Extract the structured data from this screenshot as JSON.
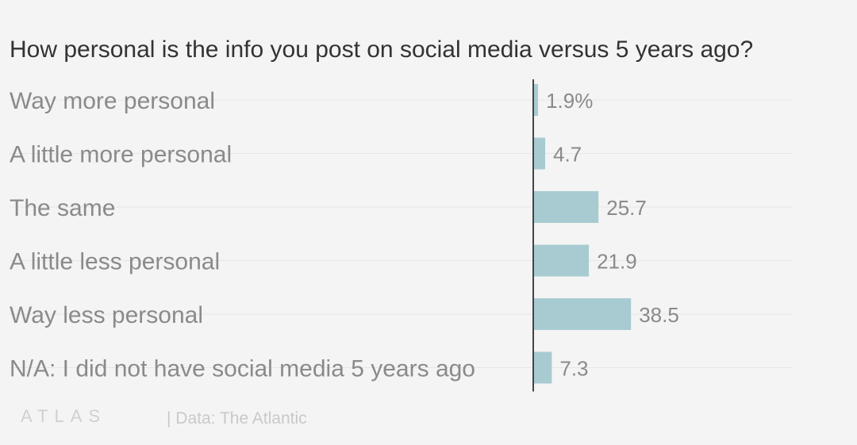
{
  "chart_data": {
    "type": "bar",
    "orientation": "horizontal",
    "title": "How personal is the info you post on social media versus 5 years ago?",
    "categories": [
      "Way more personal",
      "A little more personal",
      "The same",
      "A little less personal",
      "Way less personal",
      "N/A: I did not have social media 5 years ago"
    ],
    "values": [
      1.9,
      4.7,
      25.7,
      21.9,
      38.5,
      7.3
    ],
    "value_labels": [
      "1.9%",
      "4.7",
      "25.7",
      "21.9",
      "38.5",
      "7.3"
    ],
    "unit": "%",
    "xlim": [
      0,
      100
    ],
    "bar_color": "#a8cbd2",
    "grid": true
  },
  "footer": {
    "brand": "ATLAS",
    "source": "| Data: The Atlantic"
  },
  "colors": {
    "background": "#f4f4f4",
    "title": "#333333",
    "label": "#8a8a8a",
    "axis": "#444444",
    "gridline": "#e6e6e6"
  }
}
